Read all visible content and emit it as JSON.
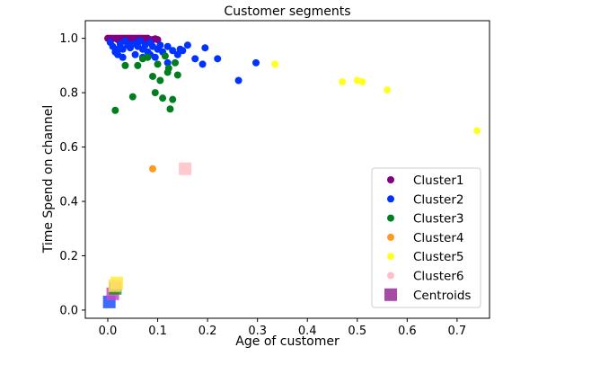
{
  "chart_data": {
    "type": "scatter",
    "title": "Customer segments",
    "xlabel": "Age of customer",
    "ylabel": "Time Spend on channel",
    "xlim": [
      -0.045,
      0.765
    ],
    "ylim": [
      -0.03,
      1.065
    ],
    "xticks": [
      0.0,
      0.1,
      0.2,
      0.3,
      0.4,
      0.5,
      0.6,
      0.7
    ],
    "yticks": [
      0.0,
      0.2,
      0.4,
      0.6,
      0.8,
      1.0
    ],
    "xtick_labels": [
      "0.0",
      "0.1",
      "0.2",
      "0.3",
      "0.4",
      "0.5",
      "0.6",
      "0.7"
    ],
    "ytick_labels": [
      "0.0",
      "0.2",
      "0.4",
      "0.6",
      "0.8",
      "1.0"
    ],
    "grid": false,
    "legend_position": "lower right",
    "series": [
      {
        "name": "Cluster1",
        "color": "#800080",
        "marker": "circle",
        "points": [
          [
            0.0,
            1.0
          ],
          [
            0.005,
            1.0
          ],
          [
            0.01,
            1.0
          ],
          [
            0.015,
            1.0
          ],
          [
            0.02,
            1.0
          ],
          [
            0.025,
            1.0
          ],
          [
            0.03,
            1.0
          ],
          [
            0.035,
            1.0
          ],
          [
            0.04,
            1.0
          ],
          [
            0.045,
            1.0
          ],
          [
            0.05,
            1.0
          ],
          [
            0.055,
            1.0
          ],
          [
            0.06,
            1.0
          ],
          [
            0.065,
            1.0
          ],
          [
            0.07,
            1.0
          ],
          [
            0.075,
            1.0
          ],
          [
            0.08,
            1.0
          ],
          [
            0.085,
            0.995
          ],
          [
            0.09,
            0.995
          ],
          [
            0.1,
            0.995
          ],
          [
            0.02,
            0.995
          ],
          [
            0.04,
            0.995
          ],
          [
            0.06,
            0.995
          ],
          [
            0.005,
            0.995
          ],
          [
            0.05,
            0.998
          ],
          [
            0.095,
            0.998
          ],
          [
            0.03,
            0.998
          ],
          [
            0.07,
            0.997
          ]
        ]
      },
      {
        "name": "Cluster2",
        "color": "#0033ff",
        "marker": "circle",
        "points": [
          [
            0.005,
            0.985
          ],
          [
            0.01,
            0.97
          ],
          [
            0.015,
            0.95
          ],
          [
            0.02,
            0.94
          ],
          [
            0.025,
            0.98
          ],
          [
            0.03,
            0.96
          ],
          [
            0.035,
            0.99
          ],
          [
            0.04,
            0.975
          ],
          [
            0.045,
            0.965
          ],
          [
            0.05,
            0.98
          ],
          [
            0.055,
            0.94
          ],
          [
            0.06,
            0.97
          ],
          [
            0.065,
            0.99
          ],
          [
            0.07,
            0.96
          ],
          [
            0.075,
            0.975
          ],
          [
            0.08,
            0.95
          ],
          [
            0.085,
            0.985
          ],
          [
            0.09,
            0.97
          ],
          [
            0.095,
            0.93
          ],
          [
            0.1,
            0.96
          ],
          [
            0.11,
            0.95
          ],
          [
            0.12,
            0.97
          ],
          [
            0.13,
            0.955
          ],
          [
            0.14,
            0.94
          ],
          [
            0.15,
            0.955
          ],
          [
            0.16,
            0.975
          ],
          [
            0.175,
            0.925
          ],
          [
            0.195,
            0.965
          ],
          [
            0.19,
            0.905
          ],
          [
            0.22,
            0.925
          ],
          [
            0.12,
            0.91
          ],
          [
            0.145,
            0.96
          ],
          [
            0.03,
            0.93
          ],
          [
            0.06,
            0.985
          ],
          [
            0.085,
            0.94
          ],
          [
            0.297,
            0.91
          ],
          [
            0.262,
            0.845
          ],
          [
            0.02,
            0.96
          ],
          [
            0.07,
            0.93
          ],
          [
            0.105,
            0.975
          ]
        ]
      },
      {
        "name": "Cluster3",
        "color": "#007f1f",
        "marker": "circle",
        "points": [
          [
            0.015,
            0.735
          ],
          [
            0.035,
            0.9
          ],
          [
            0.05,
            0.785
          ],
          [
            0.06,
            0.9
          ],
          [
            0.07,
            0.925
          ],
          [
            0.08,
            0.93
          ],
          [
            0.09,
            0.86
          ],
          [
            0.1,
            0.905
          ],
          [
            0.105,
            0.845
          ],
          [
            0.11,
            0.78
          ],
          [
            0.12,
            0.875
          ],
          [
            0.125,
            0.74
          ],
          [
            0.13,
            0.775
          ],
          [
            0.135,
            0.91
          ],
          [
            0.14,
            0.865
          ],
          [
            0.095,
            0.8
          ],
          [
            0.115,
            0.935
          ],
          [
            0.122,
            0.89
          ]
        ]
      },
      {
        "name": "Cluster4",
        "color": "#ff9922",
        "marker": "circle",
        "points": [
          [
            0.09,
            0.52
          ]
        ]
      },
      {
        "name": "Cluster5",
        "color": "#ffff22",
        "marker": "circle",
        "points": [
          [
            0.335,
            0.905
          ],
          [
            0.47,
            0.84
          ],
          [
            0.5,
            0.845
          ],
          [
            0.51,
            0.84
          ],
          [
            0.56,
            0.81
          ],
          [
            0.74,
            0.66
          ]
        ]
      },
      {
        "name": "Cluster6",
        "color": "#ffbfc5",
        "marker": "circle",
        "points": []
      },
      {
        "name": "Centroids",
        "color": "#a64ca6",
        "marker": "square",
        "points": [
          [
            0.155,
            0.52
          ],
          [
            0.003,
            0.03
          ],
          [
            0.01,
            0.06
          ],
          [
            0.015,
            0.08
          ],
          [
            0.018,
            0.1
          ],
          [
            0.014,
            0.09
          ]
        ],
        "point_colors": [
          "#ffbfc5",
          "#1a4fff",
          "#c44ec4",
          "#2b8c2b",
          "#ffee33",
          "#ffdd66"
        ]
      }
    ]
  }
}
